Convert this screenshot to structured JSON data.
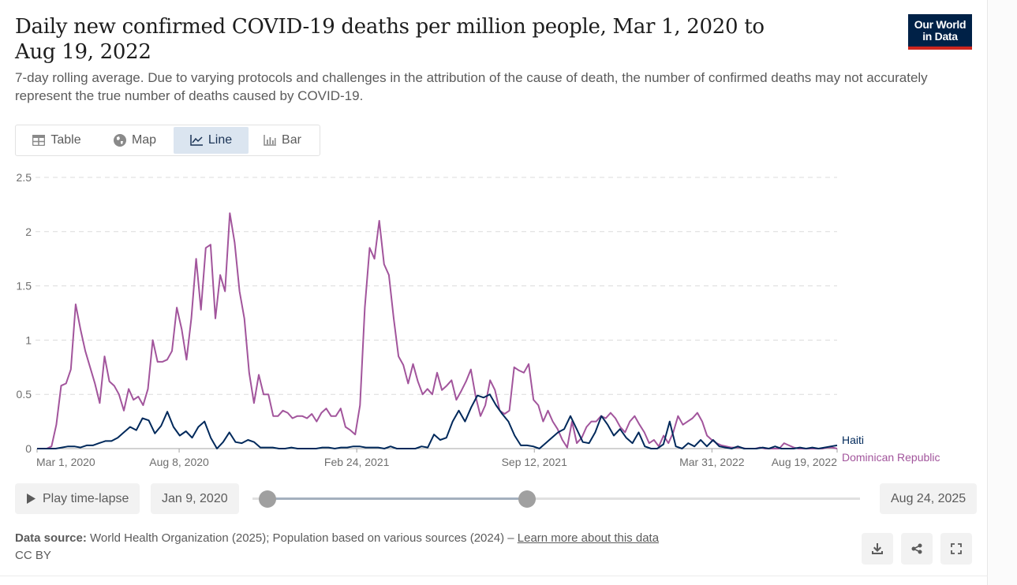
{
  "header": {
    "title": "Daily new confirmed COVID-19 deaths per million people, Mar 1, 2020 to Aug 19, 2022",
    "subtitle": "7-day rolling average. Due to varying protocols and challenges in the attribution of the cause of death, the number of confirmed deaths may not accurately represent the true number of deaths caused by COVID-19.",
    "logo_line1": "Our World",
    "logo_line2": "in Data",
    "logo_colors": {
      "bg": "#002147",
      "accent": "#ce261e"
    }
  },
  "tabs": [
    {
      "label": "Table",
      "icon": "table-icon",
      "active": false
    },
    {
      "label": "Map",
      "icon": "globe-icon",
      "active": false
    },
    {
      "label": "Line",
      "icon": "line-chart-icon",
      "active": true
    },
    {
      "label": "Bar",
      "icon": "bar-chart-icon",
      "active": false
    }
  ],
  "timeline": {
    "play_label": "Play time-lapse",
    "start_label": "Jan 9, 2020",
    "end_label": "Aug 24, 2025",
    "range_start_fraction": 0.0,
    "range_end_fraction": 0.456
  },
  "footer": {
    "source_label": "Data source:",
    "source_text": "World Health Organization (2025); Population based on various sources (2024) –",
    "source_link": "Learn more about this data",
    "license": "CC BY",
    "buttons": [
      "download-icon",
      "share-icon",
      "fullscreen-icon"
    ]
  },
  "chart_data": {
    "type": "line",
    "title": "Daily new confirmed COVID-19 deaths per million people, Mar 1, 2020 to Aug 19, 2022",
    "xlabel": "",
    "ylabel": "",
    "ylim": [
      0,
      2.5
    ],
    "yticks": [
      0,
      0.5,
      1,
      1.5,
      2,
      2.5
    ],
    "ytick_labels": [
      "0",
      "0.5",
      "1",
      "1.5",
      "2",
      "2.5"
    ],
    "x_range": [
      "Mar 1, 2020",
      "Aug 19, 2022"
    ],
    "x_domain_days": [
      0,
      901
    ],
    "xticks": [
      {
        "label": "Mar 1, 2020",
        "day": 0
      },
      {
        "label": "Aug 8, 2020",
        "day": 160
      },
      {
        "label": "Feb 24, 2021",
        "day": 360
      },
      {
        "label": "Sep 12, 2021",
        "day": 560
      },
      {
        "label": "Mar 31, 2022",
        "day": 760
      },
      {
        "label": "Aug 19, 2022",
        "day": 901
      }
    ],
    "grid": "horizontal-dashed",
    "legend": "right-end-labels",
    "sample_interval_days": 7,
    "series": [
      {
        "name": "Haiti",
        "color": "#00295b",
        "values": [
          0,
          0,
          0,
          0,
          0.01,
          0.02,
          0.02,
          0.01,
          0.03,
          0.03,
          0.05,
          0.07,
          0.07,
          0.1,
          0.15,
          0.2,
          0.17,
          0.28,
          0.26,
          0.14,
          0.21,
          0.34,
          0.2,
          0.12,
          0.16,
          0.1,
          0.2,
          0.25,
          0.1,
          0,
          0.06,
          0.15,
          0.06,
          0.05,
          0.08,
          0.06,
          0.01,
          0.01,
          0.01,
          0,
          0,
          0.01,
          0,
          0,
          0,
          0,
          0.01,
          0.01,
          0,
          0.01,
          0.01,
          0.02,
          0.02,
          0.01,
          0.01,
          0.01,
          0,
          0.02,
          0,
          0,
          0,
          0,
          0.02,
          0.01,
          0.13,
          0.08,
          0.1,
          0.25,
          0.35,
          0.25,
          0.38,
          0.49,
          0.47,
          0.5,
          0.4,
          0.32,
          0.25,
          0.12,
          0.03,
          0.03,
          0.02,
          0,
          0.05,
          0.1,
          0.15,
          0.18,
          0.3,
          0.18,
          0.06,
          0.05,
          0.15,
          0.3,
          0.22,
          0.12,
          0.18,
          0.1,
          0.05,
          0.15,
          0.02,
          0,
          0,
          0.04,
          0.25,
          0.02,
          0,
          0.05,
          0.02,
          0.08,
          0.02,
          0.08,
          0.02,
          0.01,
          0,
          0.02,
          0,
          0,
          0,
          0.01,
          0,
          0.02,
          0,
          0,
          0,
          0.01,
          0,
          0.01,
          0,
          0.01,
          0.02,
          0.03
        ],
        "end_label": "Haiti"
      },
      {
        "name": "Dominican Republic",
        "color": "#a2559c",
        "values": [
          0,
          0,
          0,
          0.02,
          0.22,
          0.58,
          0.6,
          0.73,
          1.33,
          1.1,
          0.9,
          0.75,
          0.6,
          0.42,
          0.85,
          0.62,
          0.58,
          0.5,
          0.35,
          0.55,
          0.45,
          0.48,
          0.4,
          0.55,
          1.0,
          0.8,
          0.8,
          0.82,
          0.9,
          1.3,
          1.1,
          0.82,
          1.2,
          1.75,
          1.28,
          1.85,
          1.88,
          1.2,
          1.6,
          1.45,
          2.17,
          1.9,
          1.45,
          1.2,
          0.7,
          0.42,
          0.68,
          0.5,
          0.5,
          0.3,
          0.3,
          0.35,
          0.33,
          0.28,
          0.3,
          0.3,
          0.28,
          0.32,
          0.25,
          0.33,
          0.37,
          0.3,
          0.3,
          0.37,
          0.2,
          0.17,
          0.13,
          0.4,
          1.3,
          1.85,
          1.75,
          2.1,
          1.7,
          1.6,
          1.2,
          0.85,
          0.77,
          0.6,
          0.78,
          0.62,
          0.5,
          0.55,
          0.5,
          0.7,
          0.54,
          0.58,
          0.63,
          0.45,
          0.53,
          0.62,
          0.73,
          0.48,
          0.3,
          0.4,
          0.63,
          0.54,
          0.35,
          0.32,
          0.35,
          0.75,
          0.72,
          0.7,
          0.78,
          0.45,
          0.4,
          0.25,
          0.35,
          0.25,
          0.18,
          0.08,
          0.01,
          0.25,
          0.05,
          0.1,
          0.2,
          0.25,
          0.25,
          0.3,
          0.28,
          0.33,
          0.28,
          0.2,
          0.15,
          0.25,
          0.3,
          0.22,
          0.15,
          0.05,
          0.08,
          0.02,
          0.12,
          0.05,
          0.15,
          0.3,
          0.22,
          0.25,
          0.28,
          0.33,
          0.25,
          0.12,
          0.08,
          0.05,
          0.03,
          0.02,
          0.01,
          0.01,
          0.01,
          0,
          0,
          0,
          0.01,
          0,
          0,
          0,
          0,
          0.05,
          0.03,
          0.01,
          0,
          0,
          0,
          0,
          0,
          0,
          0.01,
          0.01,
          0
        ]
      }
    ]
  }
}
